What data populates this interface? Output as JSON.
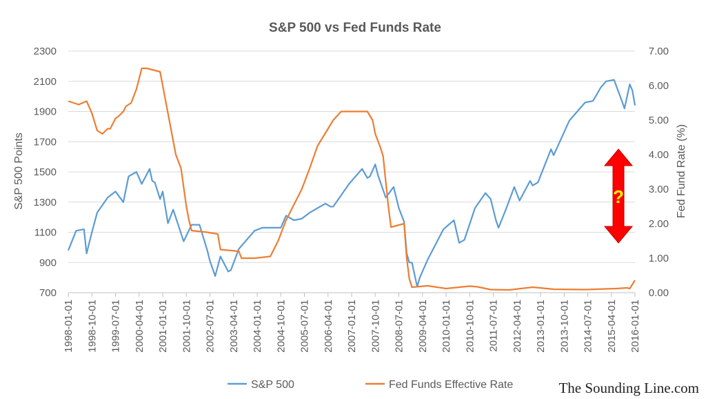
{
  "chart_data": {
    "type": "line",
    "title": "S&P 500 vs Fed Funds Rate",
    "ylabel": "S&P 500 Points",
    "y2label": "Fed Fund Rate (%)",
    "ylim": [
      700,
      2300
    ],
    "y2lim": [
      0,
      7
    ],
    "y_ticks": [
      "2300",
      "2100",
      "1900",
      "1700",
      "1500",
      "1300",
      "1100",
      "900",
      "700"
    ],
    "y2_ticks": [
      "7.00",
      "6.00",
      "5.00",
      "4.00",
      "3.00",
      "2.00",
      "1.00",
      "0.00"
    ],
    "x_ticks": [
      "1998-01-01",
      "1998-10-01",
      "1999-07-01",
      "2000-04-01",
      "2001-01-01",
      "2001-10-01",
      "2002-07-01",
      "2003-04-01",
      "2004-01-01",
      "2004-10-01",
      "2005-07-01",
      "2006-04-01",
      "2007-01-01",
      "2007-10-01",
      "2008-07-01",
      "2009-04-01",
      "2010-01-01",
      "2010-10-01",
      "2011-07-01",
      "2012-04-01",
      "2013-01-01",
      "2013-10-01",
      "2014-07-01",
      "2015-04-01",
      "2016-01-01"
    ],
    "grid": true,
    "legend_position": "bottom",
    "series": [
      {
        "name": "S&P 500",
        "axis": "left",
        "color": "#5b9bd5",
        "x": [
          "1998-01",
          "1998-04",
          "1998-07",
          "1998-08",
          "1998-10",
          "1998-12",
          "1999-04",
          "1999-07",
          "1999-10",
          "1999-12",
          "2000-03",
          "2000-05",
          "2000-08",
          "2000-09",
          "2000-10",
          "2000-12",
          "2001-01",
          "2001-03",
          "2001-05",
          "2001-09",
          "2001-12",
          "2002-03",
          "2002-06",
          "2002-07",
          "2002-09",
          "2002-11",
          "2003-02",
          "2003-03",
          "2003-06",
          "2003-12",
          "2004-03",
          "2004-10",
          "2004-12",
          "2005-03",
          "2005-06",
          "2005-09",
          "2006-03",
          "2006-05",
          "2006-06",
          "2006-12",
          "2007-05",
          "2007-07",
          "2007-08",
          "2007-10",
          "2007-11",
          "2008-02",
          "2008-05",
          "2008-07",
          "2008-09",
          "2008-10",
          "2008-11",
          "2008-12",
          "2009-02",
          "2009-03",
          "2009-06",
          "2009-12",
          "2010-04",
          "2010-06",
          "2010-08",
          "2010-12",
          "2011-04",
          "2011-06",
          "2011-08",
          "2011-09",
          "2011-12",
          "2012-03",
          "2012-05",
          "2012-09",
          "2012-10",
          "2012-12",
          "2013-05",
          "2013-06",
          "2013-12",
          "2014-06",
          "2014-09",
          "2014-12",
          "2015-02",
          "2015-05",
          "2015-08",
          "2015-09",
          "2015-11",
          "2015-12",
          "2016-01"
        ],
        "values": [
          980,
          1110,
          1120,
          960,
          1100,
          1230,
          1330,
          1370,
          1300,
          1470,
          1500,
          1420,
          1520,
          1440,
          1430,
          1320,
          1370,
          1160,
          1250,
          1040,
          1150,
          1150,
          980,
          910,
          810,
          940,
          840,
          850,
          990,
          1110,
          1130,
          1130,
          1210,
          1180,
          1190,
          1230,
          1290,
          1270,
          1270,
          1420,
          1520,
          1460,
          1470,
          1550,
          1480,
          1330,
          1400,
          1260,
          1170,
          960,
          900,
          900,
          740,
          800,
          920,
          1120,
          1180,
          1030,
          1050,
          1260,
          1360,
          1320,
          1180,
          1130,
          1260,
          1400,
          1310,
          1440,
          1410,
          1430,
          1650,
          1610,
          1840,
          1960,
          1970,
          2060,
          2100,
          2110,
          1970,
          1920,
          2080,
          2040,
          1940
        ]
      },
      {
        "name": "Fed Funds Effective Rate",
        "axis": "right",
        "color": "#ed7d31",
        "x": [
          "1998-01",
          "1998-05",
          "1998-08",
          "1998-10",
          "1998-12",
          "1999-02",
          "1999-04",
          "1999-05",
          "1999-07",
          "1999-08",
          "1999-10",
          "1999-11",
          "2000-01",
          "2000-03",
          "2000-05",
          "2000-07",
          "2000-12",
          "2001-02",
          "2001-04",
          "2001-06",
          "2001-08",
          "2001-10",
          "2001-11",
          "2001-12",
          "2002-06",
          "2002-10",
          "2002-11",
          "2003-06",
          "2003-07",
          "2003-12",
          "2004-06",
          "2004-09",
          "2004-12",
          "2005-06",
          "2005-09",
          "2005-12",
          "2006-06",
          "2006-09",
          "2007-07",
          "2007-09",
          "2007-10",
          "2007-12",
          "2008-01",
          "2008-03",
          "2008-04",
          "2008-09",
          "2008-10",
          "2008-11",
          "2008-12",
          "2009-03",
          "2009-06",
          "2010-01",
          "2010-10",
          "2011-01",
          "2011-06",
          "2012-01",
          "2012-10",
          "2013-06",
          "2014-06",
          "2015-06",
          "2015-10",
          "2015-11",
          "2015-12",
          "2016-01"
        ],
        "values": [
          5.55,
          5.45,
          5.55,
          5.2,
          4.7,
          4.6,
          4.75,
          4.75,
          5.05,
          5.1,
          5.25,
          5.4,
          5.5,
          5.9,
          6.5,
          6.5,
          6.4,
          5.6,
          4.8,
          4.0,
          3.6,
          2.5,
          2.1,
          1.8,
          1.75,
          1.7,
          1.25,
          1.2,
          1.0,
          1.0,
          1.05,
          1.5,
          2.1,
          3.0,
          3.6,
          4.25,
          5.0,
          5.25,
          5.25,
          5.0,
          4.6,
          4.2,
          3.95,
          2.5,
          1.9,
          2.0,
          1.0,
          0.4,
          0.16,
          0.18,
          0.2,
          0.12,
          0.19,
          0.17,
          0.09,
          0.08,
          0.16,
          0.1,
          0.09,
          0.12,
          0.14,
          0.12,
          0.24,
          0.36
        ]
      }
    ],
    "annotation": {
      "text": "?",
      "arrow_from": 4.0,
      "arrow_to": 1.8,
      "arrow_axis": "right",
      "arrow_color": "#ff0000",
      "text_color": "#ffff00"
    }
  },
  "watermark": "The Sounding Line.com"
}
